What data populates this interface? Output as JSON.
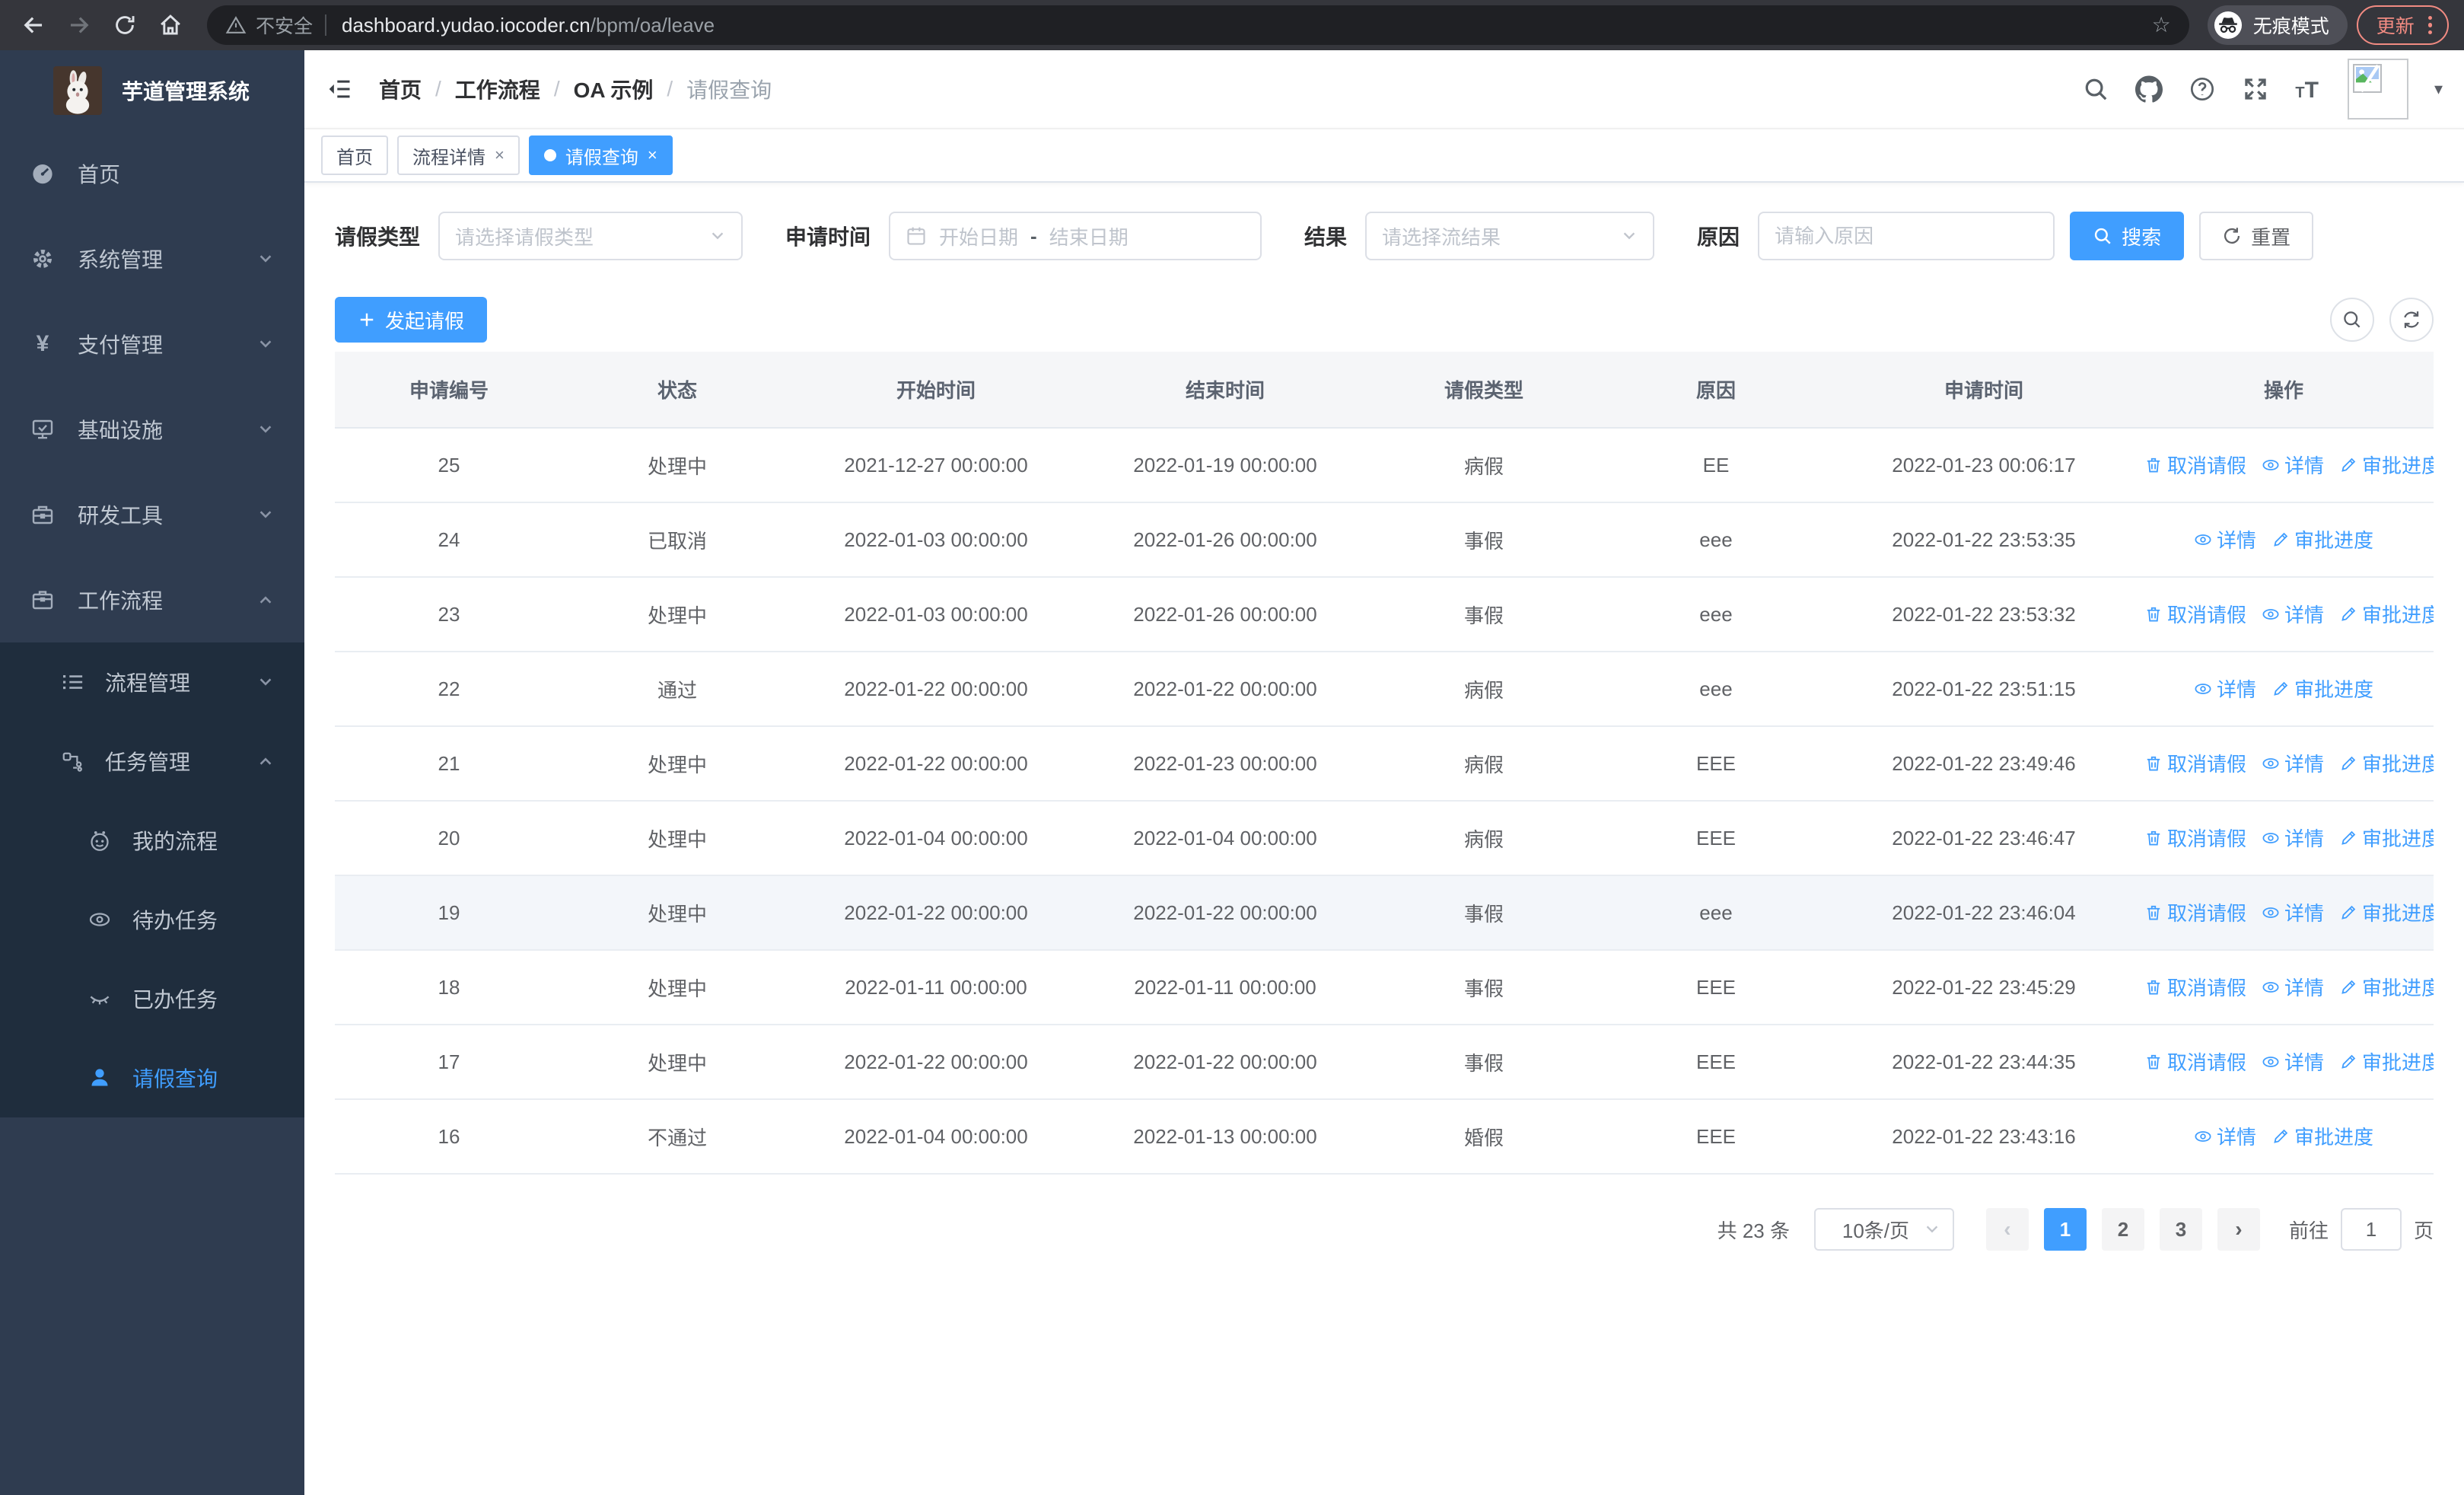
{
  "browser": {
    "security_label": "不安全",
    "url_host": "dashboard.yudao.iocoder.cn",
    "url_path": "/bpm/oa/leave",
    "incognito_label": "无痕模式",
    "update_label": "更新"
  },
  "sidebar": {
    "title": "芋道管理系统",
    "items": [
      {
        "label": "首页"
      },
      {
        "label": "系统管理"
      },
      {
        "label": "支付管理"
      },
      {
        "label": "基础设施"
      },
      {
        "label": "研发工具"
      },
      {
        "label": "工作流程"
      }
    ],
    "submenu": [
      {
        "label": "流程管理"
      },
      {
        "label": "任务管理"
      }
    ],
    "task_items": [
      {
        "label": "我的流程"
      },
      {
        "label": "待办任务"
      },
      {
        "label": "已办任务"
      },
      {
        "label": "请假查询"
      }
    ]
  },
  "breadcrumb": {
    "sep": "/",
    "items": [
      "首页",
      "工作流程",
      "OA 示例",
      "请假查询"
    ]
  },
  "tabs": [
    {
      "label": "首页"
    },
    {
      "label": "流程详情",
      "close": "×"
    },
    {
      "label": "请假查询",
      "close": "×"
    }
  ],
  "filters": {
    "leave_type_label": "请假类型",
    "leave_type_placeholder": "请选择请假类型",
    "apply_time_label": "申请时间",
    "date_start_placeholder": "开始日期",
    "date_separator": "-",
    "date_end_placeholder": "结束日期",
    "result_label": "结果",
    "result_placeholder": "请选择流结果",
    "reason_label": "原因",
    "reason_placeholder": "请输入原因",
    "search_label": "搜索",
    "reset_label": "重置"
  },
  "toolbar": {
    "create_label": "发起请假"
  },
  "table": {
    "columns": [
      "申请编号",
      "状态",
      "开始时间",
      "结束时间",
      "请假类型",
      "原因",
      "申请时间",
      "操作"
    ],
    "action_labels": {
      "cancel": "取消请假",
      "detail": "详情",
      "progress": "审批进度"
    },
    "rows": [
      {
        "id": "25",
        "status": "处理中",
        "start": "2021-12-27 00:00:00",
        "end": "2022-01-19 00:00:00",
        "type": "病假",
        "reason": "EE",
        "apply": "2022-01-23 00:06:17",
        "actions": [
          "cancel",
          "detail",
          "progress"
        ],
        "highlight": false
      },
      {
        "id": "24",
        "status": "已取消",
        "start": "2022-01-03 00:00:00",
        "end": "2022-01-26 00:00:00",
        "type": "事假",
        "reason": "eee",
        "apply": "2022-01-22 23:53:35",
        "actions": [
          "detail",
          "progress"
        ],
        "highlight": false
      },
      {
        "id": "23",
        "status": "处理中",
        "start": "2022-01-03 00:00:00",
        "end": "2022-01-26 00:00:00",
        "type": "事假",
        "reason": "eee",
        "apply": "2022-01-22 23:53:32",
        "actions": [
          "cancel",
          "detail",
          "progress"
        ],
        "highlight": false
      },
      {
        "id": "22",
        "status": "通过",
        "start": "2022-01-22 00:00:00",
        "end": "2022-01-22 00:00:00",
        "type": "病假",
        "reason": "eee",
        "apply": "2022-01-22 23:51:15",
        "actions": [
          "detail",
          "progress"
        ],
        "highlight": false
      },
      {
        "id": "21",
        "status": "处理中",
        "start": "2022-01-22 00:00:00",
        "end": "2022-01-23 00:00:00",
        "type": "病假",
        "reason": "EEE",
        "apply": "2022-01-22 23:49:46",
        "actions": [
          "cancel",
          "detail",
          "progress"
        ],
        "highlight": false
      },
      {
        "id": "20",
        "status": "处理中",
        "start": "2022-01-04 00:00:00",
        "end": "2022-01-04 00:00:00",
        "type": "病假",
        "reason": "EEE",
        "apply": "2022-01-22 23:46:47",
        "actions": [
          "cancel",
          "detail",
          "progress"
        ],
        "highlight": false
      },
      {
        "id": "19",
        "status": "处理中",
        "start": "2022-01-22 00:00:00",
        "end": "2022-01-22 00:00:00",
        "type": "事假",
        "reason": "eee",
        "apply": "2022-01-22 23:46:04",
        "actions": [
          "cancel",
          "detail",
          "progress"
        ],
        "highlight": true
      },
      {
        "id": "18",
        "status": "处理中",
        "start": "2022-01-11 00:00:00",
        "end": "2022-01-11 00:00:00",
        "type": "事假",
        "reason": "EEE",
        "apply": "2022-01-22 23:45:29",
        "actions": [
          "cancel",
          "detail",
          "progress"
        ],
        "highlight": false
      },
      {
        "id": "17",
        "status": "处理中",
        "start": "2022-01-22 00:00:00",
        "end": "2022-01-22 00:00:00",
        "type": "事假",
        "reason": "EEE",
        "apply": "2022-01-22 23:44:35",
        "actions": [
          "cancel",
          "detail",
          "progress"
        ],
        "highlight": false
      },
      {
        "id": "16",
        "status": "不通过",
        "start": "2022-01-04 00:00:00",
        "end": "2022-01-13 00:00:00",
        "type": "婚假",
        "reason": "EEE",
        "apply": "2022-01-22 23:43:16",
        "actions": [
          "detail",
          "progress"
        ],
        "highlight": false
      }
    ]
  },
  "pagination": {
    "total_label": "共 23 条",
    "page_size": "10条/页",
    "prev": "‹",
    "next": "›",
    "pages": [
      "1",
      "2",
      "3"
    ],
    "active_page": "1",
    "jump_prefix": "前往",
    "jump_value": "1",
    "jump_suffix": "页"
  },
  "colors": {
    "accent": "#409eff",
    "sidebar_bg": "#2f3c50",
    "submenu_bg": "#1f2d3d",
    "update_red": "#f28b82"
  }
}
